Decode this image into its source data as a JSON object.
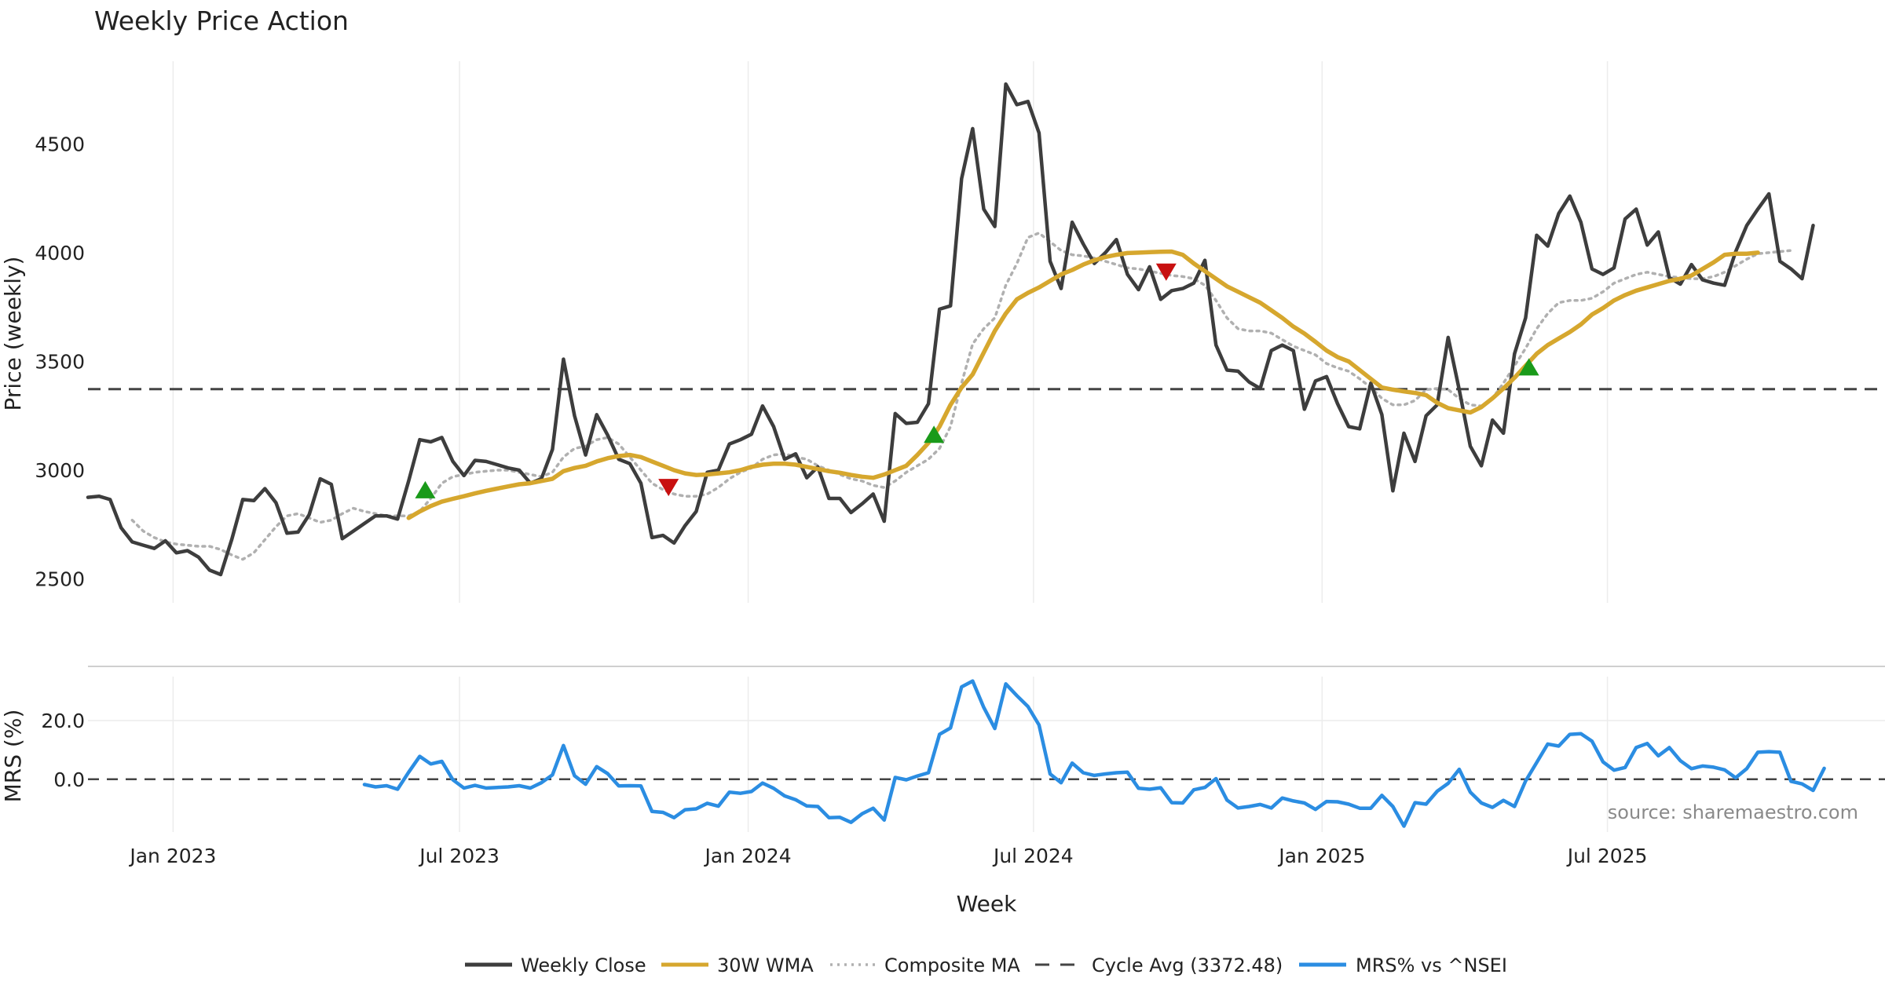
{
  "chart_data": [
    {
      "type": "line",
      "title": "Weekly Price Action",
      "xlabel": "Week",
      "ylabel": "Price (weekly)",
      "x_unit": "weeks since 2022-11-07",
      "xlim": [
        0,
        162.5
      ],
      "ylim": [
        2390,
        4880
      ],
      "y_ticks": [
        2500,
        3000,
        3500,
        4000,
        4500
      ],
      "x_ticks": [
        {
          "x": 7.7,
          "label": "Jan 2023"
        },
        {
          "x": 33.6,
          "label": "Jul 2023"
        },
        {
          "x": 59.7,
          "label": "Jan 2024"
        },
        {
          "x": 85.5,
          "label": "Jul 2024"
        },
        {
          "x": 111.6,
          "label": "Jan 2025"
        },
        {
          "x": 137.4,
          "label": "Jul 2025"
        }
      ],
      "series": [
        {
          "name": "Weekly Close",
          "color": "#3d3d3d",
          "x0": 0,
          "values": [
            2875,
            2880,
            2865,
            2735,
            2670,
            2655,
            2640,
            2675,
            2620,
            2630,
            2600,
            2540,
            2520,
            2680,
            2865,
            2860,
            2915,
            2850,
            2710,
            2715,
            2795,
            2960,
            2935,
            2685,
            2720,
            2755,
            2790,
            2790,
            2775,
            2950,
            3140,
            3130,
            3150,
            3040,
            2975,
            3045,
            3040,
            3025,
            3010,
            3000,
            2940,
            2960,
            3095,
            3510,
            3250,
            3070,
            3255,
            3160,
            3050,
            3030,
            2940,
            2690,
            2700,
            2665,
            2745,
            2810,
            2990,
            3000,
            3120,
            3140,
            3165,
            3295,
            3200,
            3050,
            3075,
            2965,
            3015,
            2870,
            2870,
            2805,
            2845,
            2890,
            2765,
            3260,
            3215,
            3220,
            3305,
            3740,
            3755,
            4340,
            4570,
            4200,
            4120,
            4775,
            4680,
            4695,
            4550,
            3960,
            3835,
            4140,
            4040,
            3950,
            4000,
            4060,
            3900,
            3830,
            3935,
            3785,
            3825,
            3835,
            3860,
            3965,
            3575,
            3460,
            3455,
            3405,
            3375,
            3550,
            3575,
            3550,
            3280,
            3410,
            3430,
            3305,
            3200,
            3190,
            3400,
            3255,
            2905,
            3170,
            3040,
            3250,
            3300,
            3610,
            3370,
            3110,
            3020,
            3230,
            3170,
            3535,
            3700,
            4080,
            4030,
            4180,
            4260,
            4140,
            3925,
            3900,
            3930,
            4155,
            4200,
            4035,
            4095,
            3885,
            3855,
            3945,
            3875,
            3860,
            3850,
            4005,
            4125,
            4200,
            4270,
            3960,
            3925,
            3880,
            4125
          ]
        },
        {
          "name": "30W WMA",
          "color": "#d6a72e",
          "x0": 29,
          "values": [
            2780,
            2810,
            2835,
            2855,
            2868,
            2880,
            2893,
            2905,
            2915,
            2925,
            2935,
            2940,
            2950,
            2960,
            2995,
            3010,
            3020,
            3040,
            3055,
            3065,
            3070,
            3060,
            3040,
            3020,
            3000,
            2985,
            2978,
            2980,
            2985,
            2990,
            3000,
            3015,
            3025,
            3030,
            3030,
            3025,
            3015,
            3005,
            2995,
            2988,
            2978,
            2970,
            2965,
            2980,
            3000,
            3020,
            3070,
            3125,
            3200,
            3300,
            3380,
            3440,
            3540,
            3640,
            3720,
            3785,
            3815,
            3840,
            3870,
            3900,
            3920,
            3945,
            3965,
            3980,
            3990,
            3998,
            4000,
            4002,
            4004,
            4005,
            3990,
            3950,
            3915,
            3880,
            3845,
            3820,
            3795,
            3770,
            3735,
            3700,
            3660,
            3628,
            3590,
            3550,
            3520,
            3500,
            3460,
            3420,
            3380,
            3370,
            3362,
            3355,
            3345,
            3310,
            3285,
            3275,
            3265,
            3290,
            3330,
            3375,
            3425,
            3480,
            3535,
            3575,
            3605,
            3635,
            3670,
            3715,
            3745,
            3780,
            3805,
            3825,
            3840,
            3855,
            3870,
            3880,
            3895,
            3925,
            3955,
            3990,
            3995,
            3995,
            4000
          ]
        },
        {
          "name": "Composite MA",
          "color": "#b0b0b0",
          "x0": 4,
          "values": [
            2770,
            2720,
            2690,
            2670,
            2660,
            2655,
            2650,
            2650,
            2635,
            2610,
            2590,
            2620,
            2680,
            2740,
            2790,
            2800,
            2780,
            2760,
            2770,
            2800,
            2825,
            2810,
            2800,
            2790,
            2790,
            2790,
            2810,
            2870,
            2940,
            2970,
            2980,
            2990,
            2995,
            3000,
            3000,
            2990,
            2980,
            2970,
            2990,
            3060,
            3100,
            3110,
            3140,
            3150,
            3120,
            3060,
            3000,
            2940,
            2910,
            2890,
            2880,
            2880,
            2890,
            2920,
            2960,
            2990,
            3010,
            3050,
            3070,
            3075,
            3060,
            3050,
            3020,
            3000,
            2980,
            2960,
            2950,
            2930,
            2920,
            2950,
            2990,
            3020,
            3050,
            3100,
            3200,
            3400,
            3580,
            3650,
            3700,
            3850,
            3950,
            4070,
            4090,
            4050,
            4010,
            3990,
            3985,
            3975,
            3960,
            3945,
            3930,
            3925,
            3915,
            3905,
            3895,
            3890,
            3880,
            3850,
            3780,
            3700,
            3650,
            3640,
            3640,
            3630,
            3600,
            3570,
            3550,
            3530,
            3490,
            3470,
            3455,
            3420,
            3380,
            3330,
            3300,
            3300,
            3320,
            3370,
            3375,
            3370,
            3330,
            3300,
            3295,
            3330,
            3400,
            3480,
            3560,
            3650,
            3720,
            3770,
            3780,
            3780,
            3790,
            3820,
            3860,
            3880,
            3900,
            3910,
            3900,
            3890,
            3885,
            3880,
            3880,
            3890,
            3910,
            3940,
            3970,
            3995,
            4000,
            4005,
            4010
          ]
        },
        {
          "name": "Cycle Avg (3372.48)",
          "color": "#444444",
          "value": 3372.48
        }
      ],
      "signals": [
        {
          "type": "buy",
          "x": 30.5,
          "y": 2910,
          "color": "#1a9a1a"
        },
        {
          "type": "sell",
          "x": 52.5,
          "y": 2920,
          "color": "#c81010"
        },
        {
          "type": "buy",
          "x": 76.5,
          "y": 3165,
          "color": "#1a9a1a"
        },
        {
          "type": "sell",
          "x": 97.5,
          "y": 3910,
          "color": "#c81010"
        },
        {
          "type": "buy",
          "x": 130.3,
          "y": 3475,
          "color": "#1a9a1a"
        }
      ]
    },
    {
      "type": "line",
      "ylabel": "MRS (%)",
      "ylim": [
        -18,
        35
      ],
      "y_ticks": [
        0.0,
        20.0
      ],
      "y_tick_labels": [
        "0.0",
        "20.0"
      ],
      "series": [
        {
          "name": "MRS% vs ^NSEI",
          "color": "#2b8de2",
          "x0": 25,
          "values": [
            -1.8,
            -2.6,
            -2.2,
            -3.4,
            2.4,
            7.8,
            5.2,
            6.1,
            -0.2,
            -3.0,
            -2.1,
            -3.0,
            -2.8,
            -2.6,
            -2.2,
            -3.0,
            -1.2,
            1.5,
            11.5,
            1.2,
            -1.7,
            4.3,
            1.9,
            -2.3,
            -2.2,
            -2.3,
            -11.0,
            -11.3,
            -13.1,
            -10.4,
            -10.1,
            -8.2,
            -9.2,
            -4.4,
            -4.8,
            -4.2,
            -1.3,
            -3.1,
            -5.7,
            -7.0,
            -9.1,
            -9.3,
            -13.1,
            -13.0,
            -14.7,
            -11.8,
            -9.9,
            -13.9,
            0.6,
            -0.2,
            1.1,
            2.2,
            15.3,
            17.5,
            31.5,
            33.5,
            24.5,
            17.3,
            32.5,
            28.5,
            24.8,
            18.5,
            1.8,
            -1.2,
            5.5,
            2.2,
            1.3,
            1.8,
            2.2,
            2.4,
            -3.1,
            -3.4,
            -2.9,
            -8.0,
            -8.1,
            -3.6,
            -2.8,
            0.2,
            -7.1,
            -9.8,
            -9.3,
            -8.6,
            -9.8,
            -6.4,
            -7.4,
            -8.1,
            -10.3,
            -7.6,
            -7.7,
            -8.5,
            -9.9,
            -9.9,
            -5.5,
            -9.3,
            -16.0,
            -8.0,
            -8.5,
            -4.1,
            -1.4,
            3.4,
            -4.4,
            -8.1,
            -9.6,
            -7.2,
            -9.3,
            -0.6,
            5.7,
            12.0,
            11.3,
            15.3,
            15.5,
            13.0,
            5.9,
            3.1,
            4.0,
            10.8,
            12.2,
            8.0,
            10.8,
            6.3,
            3.6,
            4.5,
            4.1,
            3.2,
            0.5,
            3.6,
            9.2,
            9.4,
            9.2,
            -0.7,
            -1.6,
            -3.8,
            3.7
          ]
        },
        {
          "name": "zero-line",
          "color": "#444444",
          "value": 0
        }
      ]
    }
  ],
  "legend": [
    {
      "label": "Weekly Close",
      "style": "solid",
      "color": "#3d3d3d"
    },
    {
      "label": "30W WMA",
      "style": "solid",
      "color": "#d6a72e"
    },
    {
      "label": "Composite MA",
      "style": "dotted",
      "color": "#b0b0b0"
    },
    {
      "label": "Cycle Avg (3372.48)",
      "style": "dashed",
      "color": "#444444"
    },
    {
      "label": "MRS% vs ^NSEI",
      "style": "solid",
      "color": "#2b8de2"
    }
  ],
  "source_text": "source: sharemaestro.com"
}
